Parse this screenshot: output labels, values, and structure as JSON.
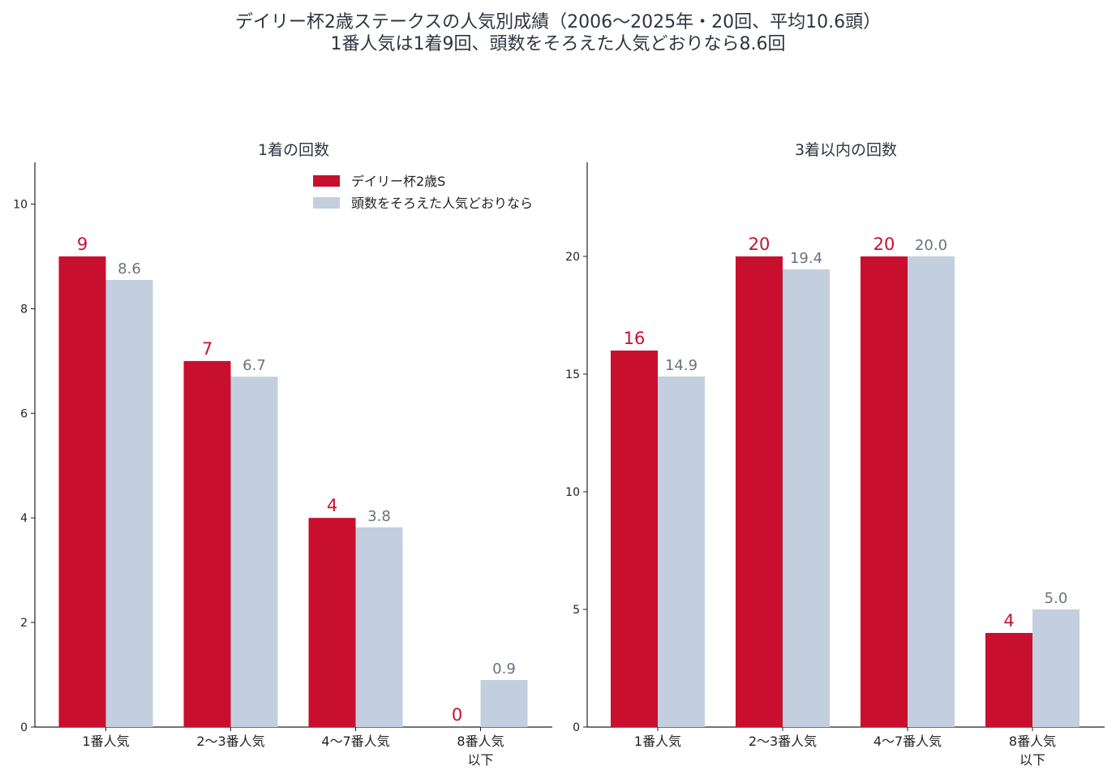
{
  "figure": {
    "title_line1": "デイリー杯2歳ステークスの人気別成績（2006〜2025年・20回、平均10.6頭）",
    "title_line2": "1番人気は1着9回、頭数をそろえた人気どおりなら8.6回"
  },
  "colors": {
    "actual": "#c8102e",
    "expected": "#c3cfdf",
    "expected_label": "#6b7280",
    "axis": "#222222"
  },
  "legend": {
    "actual_label": "デイリー杯2歳S",
    "expected_label": "頭数をそろえた人気どおりなら",
    "placement": "top-right of left panel"
  },
  "chart_data": [
    {
      "type": "bar",
      "title": "1着の回数",
      "categories": [
        [
          "1番人気"
        ],
        [
          "2〜3番人気"
        ],
        [
          "4〜7番人気"
        ],
        [
          "8番人気",
          "以下"
        ]
      ],
      "series": [
        {
          "name": "デイリー杯2歳S",
          "values": [
            9,
            7,
            4,
            0
          ],
          "labels": [
            "9",
            "7",
            "4",
            "0"
          ]
        },
        {
          "name": "頭数をそろえた人気どおりなら",
          "values": [
            8.55,
            6.7,
            3.82,
            0.9
          ],
          "labels": [
            "8.6",
            "6.7",
            "3.8",
            "0.9"
          ]
        }
      ],
      "yticks": [
        0,
        2,
        4,
        6,
        8,
        10
      ],
      "ylim": [
        0,
        10.8
      ],
      "grid": false
    },
    {
      "type": "bar",
      "title": "3着以内の回数",
      "categories": [
        [
          "1番人気"
        ],
        [
          "2〜3番人気"
        ],
        [
          "4〜7番人気"
        ],
        [
          "8番人気",
          "以下"
        ]
      ],
      "series": [
        {
          "name": "デイリー杯2歳S",
          "values": [
            16,
            20,
            20,
            4
          ],
          "labels": [
            "16",
            "20",
            "20",
            "4"
          ]
        },
        {
          "name": "頭数をそろえた人気どおりなら",
          "values": [
            14.9,
            19.45,
            20.0,
            5.0
          ],
          "labels": [
            "14.9",
            "19.4",
            "20.0",
            "5.0"
          ]
        }
      ],
      "yticks": [
        0,
        5,
        10,
        15,
        20
      ],
      "ylim": [
        0,
        24
      ],
      "grid": false
    }
  ]
}
